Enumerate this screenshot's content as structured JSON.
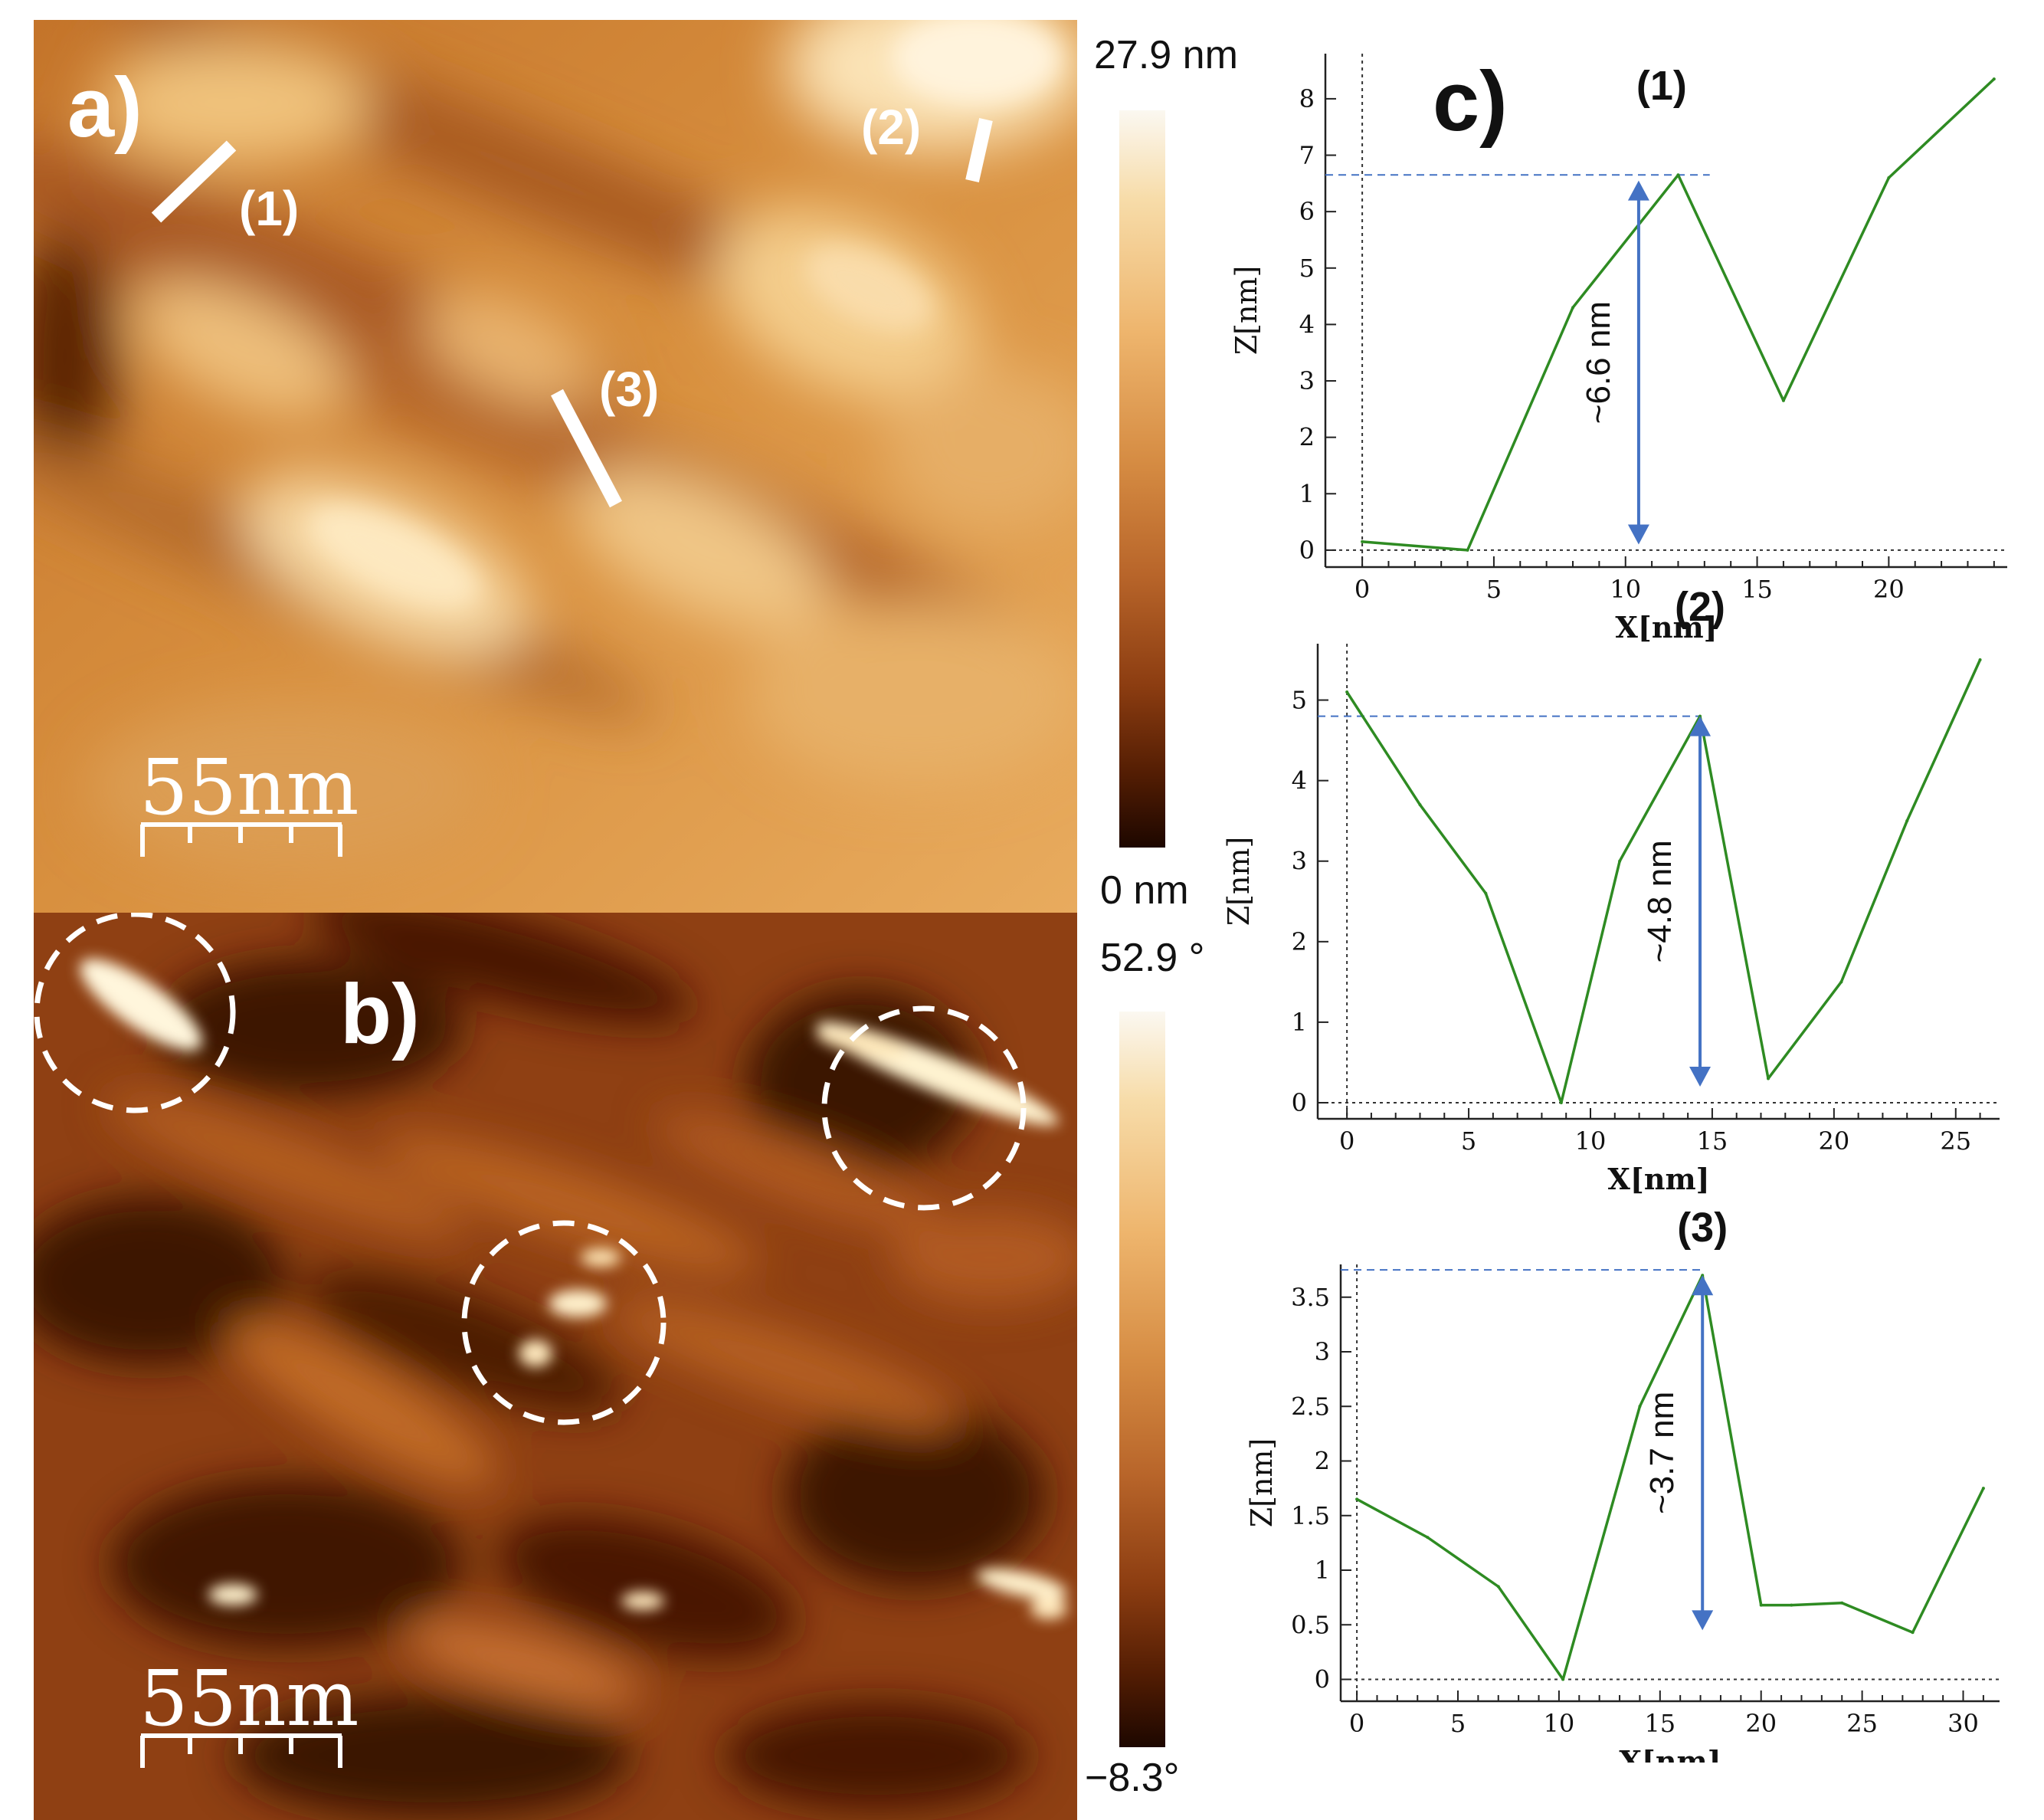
{
  "panel_a": {
    "label": "a)",
    "scale_bar": "55nm",
    "profile_markers": [
      "(1)",
      "(2)",
      "(3)"
    ],
    "colorbar": {
      "max": "27.9 nm",
      "min": "0  nm"
    },
    "colors": {
      "dark": "#3a1404",
      "mid": "#c9782e",
      "light": "#fbe2b2"
    }
  },
  "panel_b": {
    "label": "b)",
    "scale_bar": "55nm",
    "colorbar": {
      "max": "52.9 °",
      "min": "−8.3°"
    },
    "colors": {
      "dark": "#2a0a02",
      "mid": "#9a4614",
      "light": "#fff2cf"
    }
  },
  "panel_c": {
    "label": "c)"
  },
  "chart_data": [
    {
      "type": "line",
      "title": "(1)",
      "xlabel": "X[nm]",
      "ylabel": "Z[nm]",
      "x": [
        0,
        4,
        8,
        12,
        16,
        20,
        24
      ],
      "y": [
        0.15,
        0.0,
        4.3,
        6.65,
        2.65,
        6.6,
        8.35
      ],
      "xlim": [
        -1.4,
        24.5
      ],
      "ylim": [
        -0.3,
        8.8
      ],
      "xticks": [
        0,
        5,
        10,
        15,
        20
      ],
      "yticks": [
        0,
        1,
        2,
        3,
        4,
        5,
        6,
        7,
        8
      ],
      "annotation": {
        "text": "~6.6 nm",
        "x": 10.5,
        "y_from": 0.1,
        "y_to": 6.55,
        "ref_line_y": 6.65,
        "ref_line_x_end": 13.2
      },
      "line_color": "#2e8b22",
      "annotation_color": "#4472c4"
    },
    {
      "type": "line",
      "title": "(2)",
      "xlabel": "X[nm]",
      "ylabel": "Z[nm]",
      "x": [
        0,
        3,
        5.7,
        8.8,
        11.2,
        14.5,
        17.3,
        20.3,
        23,
        26
      ],
      "y": [
        5.1,
        3.7,
        2.6,
        0.0,
        3.0,
        4.8,
        0.3,
        1.5,
        3.5,
        5.5
      ],
      "xlim": [
        -1.2,
        26.8
      ],
      "ylim": [
        -0.2,
        5.7
      ],
      "xticks": [
        0,
        5,
        10,
        15,
        20,
        25
      ],
      "yticks": [
        0,
        1,
        2,
        3,
        4,
        5
      ],
      "annotation": {
        "text": "~4.8 nm",
        "x": 14.5,
        "y_from": 0.2,
        "y_to": 4.8,
        "ref_line_y": 4.8,
        "ref_line_x_end": 14.5
      },
      "line_color": "#2e8b22",
      "annotation_color": "#4472c4"
    },
    {
      "type": "line",
      "title": "(3)",
      "xlabel": "X[nm]",
      "ylabel": "Z[nm]",
      "x": [
        0,
        3.5,
        7,
        10.2,
        14,
        17.1,
        20,
        21.5,
        24,
        27.5,
        31
      ],
      "y": [
        1.65,
        1.3,
        0.85,
        0.0,
        2.5,
        3.7,
        0.68,
        0.68,
        0.7,
        0.43,
        1.75
      ],
      "xlim": [
        -0.8,
        31.8
      ],
      "ylim": [
        -0.2,
        3.8
      ],
      "xticks": [
        0,
        5,
        10,
        15,
        20,
        25,
        30
      ],
      "yticks": [
        0,
        0.5,
        1,
        1.5,
        2,
        2.5,
        3,
        3.5
      ],
      "annotation": {
        "text": "~3.7 nm",
        "x": 17.1,
        "y_from": 0.45,
        "y_to": 3.7,
        "ref_line_y": 3.75,
        "ref_line_x_end": 17.1
      },
      "line_color": "#2e8b22",
      "annotation_color": "#4472c4"
    }
  ]
}
